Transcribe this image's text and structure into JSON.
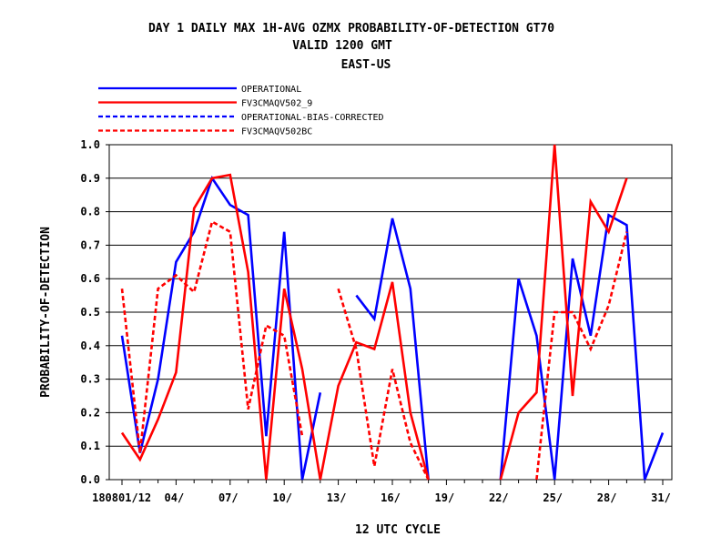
{
  "chart_data": {
    "type": "line",
    "title": [
      "DAY 1 DAILY MAX   1H-AVG OZMX PROBABILITY-OF-DETECTION GT70",
      "VALID 1200 GMT",
      "EAST-US"
    ],
    "xlabel": "12 UTC CYCLE",
    "ylabel": "PROBABILITY-OF-DETECTION",
    "xlim": [
      1,
      31
    ],
    "ylim": [
      0.0,
      1.0
    ],
    "xticks": [
      1,
      4,
      7,
      10,
      13,
      16,
      19,
      22,
      25,
      28,
      31
    ],
    "xtick_labels": [
      "1808 01/12",
      "04/",
      "07/",
      "10/",
      "13/",
      "16/",
      "19/",
      "22/",
      "25/",
      "28/",
      "31/"
    ],
    "yticks": [
      0.0,
      0.1,
      0.2,
      0.3,
      0.4,
      0.5,
      0.6,
      0.7,
      0.8,
      0.9,
      1.0
    ],
    "ytick_labels": [
      "0.0",
      "0.1",
      "0.2",
      "0.3",
      "0.4",
      "0.5",
      "0.6",
      "0.7",
      "0.8",
      "0.9",
      "1.0"
    ],
    "grid": "horizontal",
    "legend_position": "top-left",
    "series": [
      {
        "name": "OPERATIONAL",
        "color": "#0000ff",
        "dash": "solid",
        "points": [
          [
            1,
            0.43
          ],
          [
            2,
            0.08
          ],
          [
            3,
            0.3
          ],
          [
            4,
            0.65
          ],
          [
            5,
            0.74
          ],
          [
            6,
            0.9
          ],
          [
            7,
            0.82
          ],
          [
            8,
            0.79
          ],
          [
            9,
            0.13
          ],
          [
            10,
            0.74
          ],
          [
            11,
            0.0
          ],
          [
            12,
            0.26
          ],
          null,
          [
            14,
            0.55
          ],
          [
            15,
            0.48
          ],
          [
            16,
            0.78
          ],
          [
            17,
            0.57
          ],
          [
            18,
            0.0
          ],
          null,
          null,
          null,
          [
            22,
            0.0
          ],
          [
            23,
            0.6
          ],
          [
            24,
            0.43
          ],
          [
            25,
            0.0
          ],
          [
            26,
            0.66
          ],
          [
            27,
            0.43
          ],
          [
            28,
            0.79
          ],
          [
            29,
            0.76
          ],
          [
            30,
            0.0
          ],
          [
            31,
            0.14
          ]
        ]
      },
      {
        "name": "FV3CMAQV502_9",
        "color": "#ff0000",
        "dash": "solid",
        "points": [
          [
            1,
            0.14
          ],
          [
            2,
            0.06
          ],
          [
            3,
            0.18
          ],
          [
            4,
            0.32
          ],
          [
            5,
            0.81
          ],
          [
            6,
            0.9
          ],
          [
            7,
            0.91
          ],
          [
            8,
            0.62
          ],
          [
            9,
            0.0
          ],
          [
            10,
            0.57
          ],
          [
            11,
            0.33
          ],
          [
            12,
            0.0
          ],
          [
            13,
            0.28
          ],
          [
            14,
            0.41
          ],
          [
            15,
            0.39
          ],
          [
            16,
            0.59
          ],
          [
            17,
            0.2
          ],
          [
            18,
            0.0
          ],
          null,
          null,
          null,
          [
            22,
            0.0
          ],
          [
            23,
            0.2
          ],
          [
            24,
            0.26
          ],
          [
            25,
            1.0
          ],
          [
            26,
            0.25
          ],
          [
            27,
            0.83
          ],
          [
            28,
            0.74
          ],
          [
            29,
            0.9
          ],
          null,
          null
        ]
      },
      {
        "name": "OPERATIONAL-BIAS-CORRECTED",
        "color": "#0000ff",
        "dash": "dashed",
        "points": []
      },
      {
        "name": "FV3CMAQV502BC",
        "color": "#ff0000",
        "dash": "dashed",
        "points": [
          [
            1,
            0.57
          ],
          [
            2,
            0.08
          ],
          [
            3,
            0.57
          ],
          [
            4,
            0.61
          ],
          [
            5,
            0.56
          ],
          [
            6,
            0.77
          ],
          [
            7,
            0.74
          ],
          [
            8,
            0.21
          ],
          [
            9,
            0.46
          ],
          [
            10,
            0.43
          ],
          [
            11,
            0.13
          ],
          null,
          [
            13,
            0.57
          ],
          [
            14,
            0.39
          ],
          [
            15,
            0.04
          ],
          [
            16,
            0.33
          ],
          [
            17,
            0.11
          ],
          [
            18,
            0.0
          ],
          null,
          null,
          null,
          null,
          null,
          [
            24,
            0.0
          ],
          [
            25,
            0.5
          ],
          [
            26,
            0.5
          ],
          [
            27,
            0.39
          ],
          [
            28,
            0.52
          ],
          [
            29,
            0.74
          ],
          null,
          null
        ]
      }
    ]
  }
}
